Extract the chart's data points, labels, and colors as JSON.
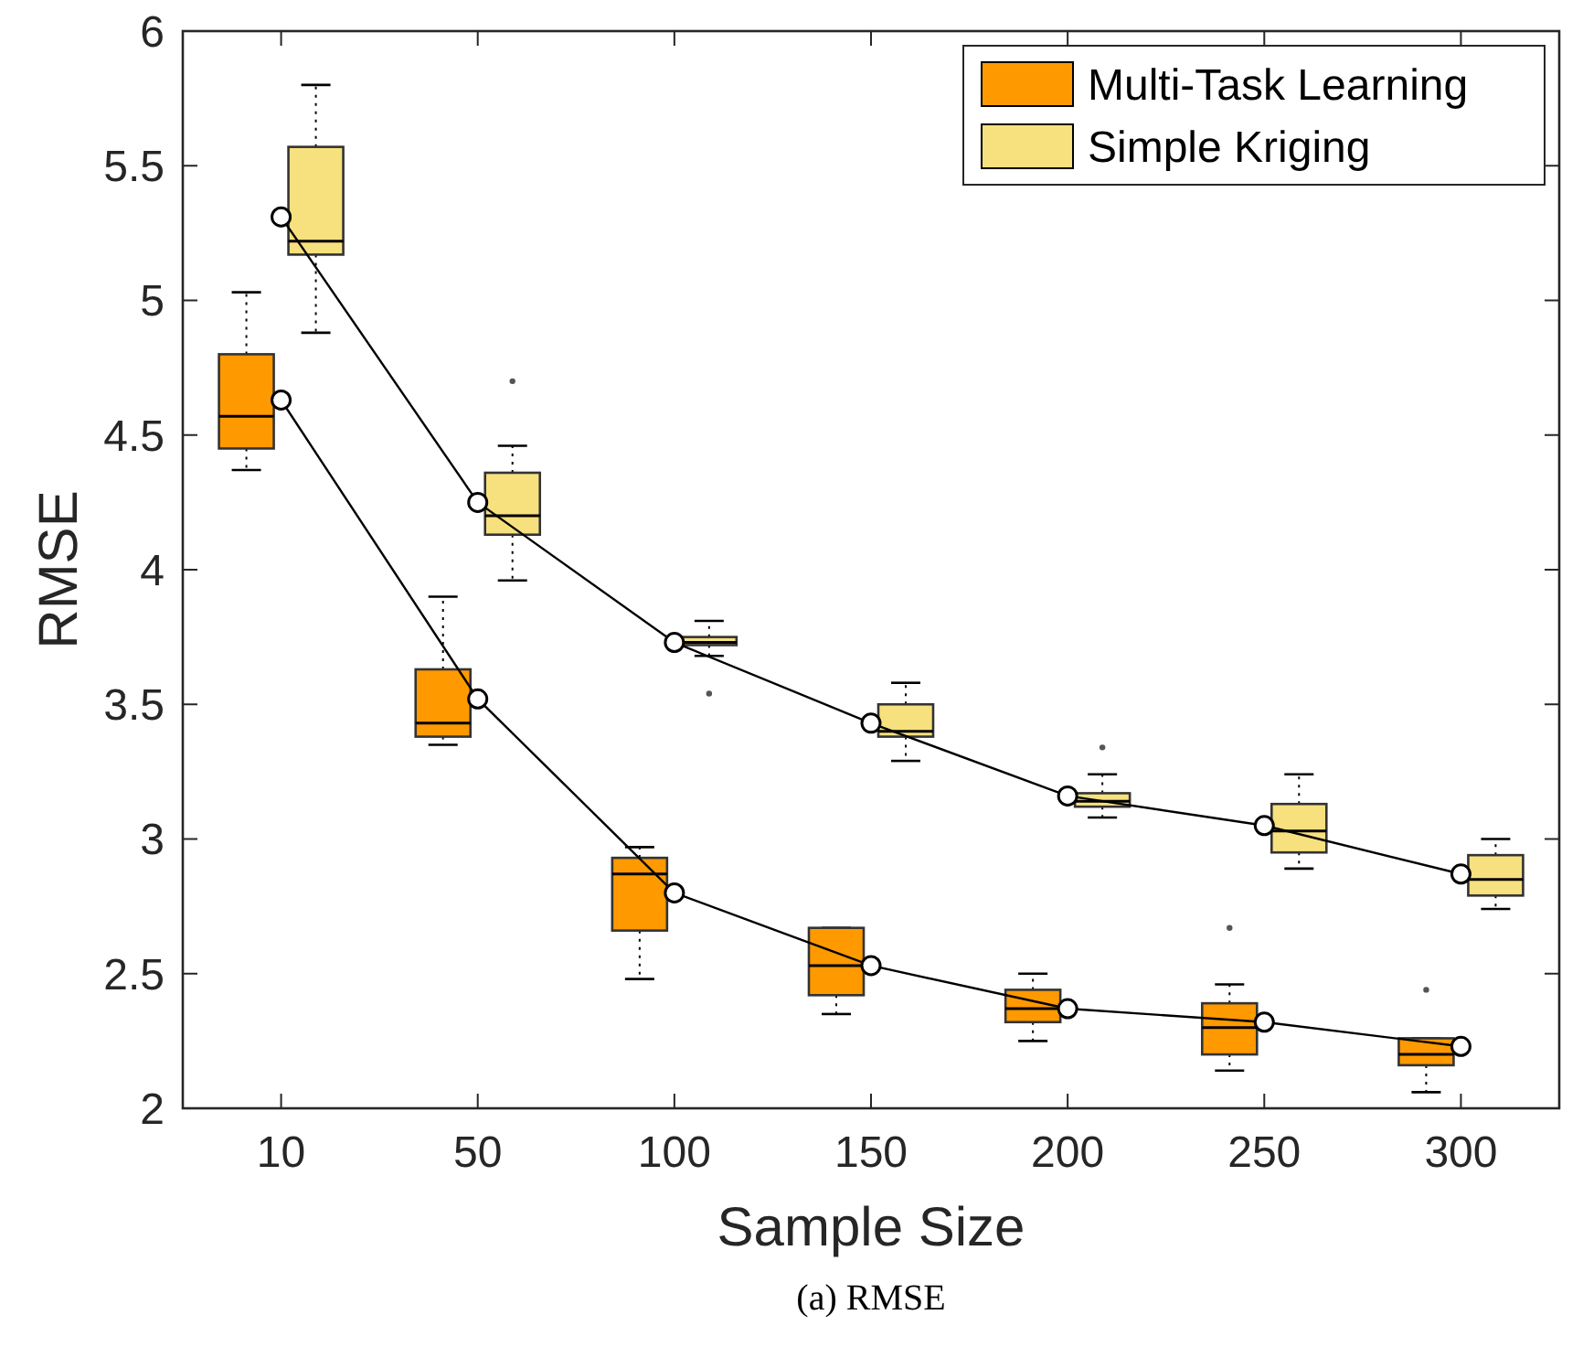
{
  "chart_data": {
    "type": "box",
    "xlabel": "Sample Size",
    "ylabel": "RMSE",
    "annotations": [
      "(a) RMSE"
    ],
    "categories": [
      "10",
      "50",
      "100",
      "150",
      "200",
      "250",
      "300"
    ],
    "ylim": [
      2,
      6
    ],
    "yticks": [
      2,
      2.5,
      3,
      3.5,
      4,
      4.5,
      5,
      5.5,
      6
    ],
    "grid": false,
    "legend": "top right",
    "series": [
      {
        "name": "Multi-Task Learning",
        "color": "#ff9900",
        "boxes": [
          {
            "low": 4.37,
            "q1": 4.45,
            "median": 4.57,
            "q3": 4.8,
            "high": 5.03
          },
          {
            "low": 3.35,
            "q1": 3.38,
            "median": 3.43,
            "q3": 3.63,
            "high": 3.9
          },
          {
            "low": 2.48,
            "q1": 2.66,
            "median": 2.87,
            "q3": 2.93,
            "high": 2.97
          },
          {
            "low": 2.35,
            "q1": 2.42,
            "median": 2.53,
            "q3": 2.67,
            "high": 2.67
          },
          {
            "low": 2.25,
            "q1": 2.32,
            "median": 2.37,
            "q3": 2.44,
            "high": 2.5
          },
          {
            "low": 2.14,
            "q1": 2.2,
            "median": 2.3,
            "q3": 2.39,
            "high": 2.46,
            "outliers": [
              2.67
            ]
          },
          {
            "low": 2.06,
            "q1": 2.16,
            "median": 2.2,
            "q3": 2.26,
            "high": 2.26,
            "outliers": [
              2.44
            ]
          }
        ]
      },
      {
        "name": "Simple Kriging",
        "color": "#f7e07e",
        "boxes": [
          {
            "low": 4.88,
            "q1": 5.17,
            "median": 5.22,
            "q3": 5.57,
            "high": 5.8
          },
          {
            "low": 3.96,
            "q1": 4.13,
            "median": 4.2,
            "q3": 4.36,
            "high": 4.46,
            "outliers": [
              4.7
            ]
          },
          {
            "low": 3.68,
            "q1": 3.72,
            "median": 3.73,
            "q3": 3.75,
            "high": 3.81,
            "outliers": [
              3.54
            ]
          },
          {
            "low": 3.29,
            "q1": 3.38,
            "median": 3.4,
            "q3": 3.5,
            "high": 3.58
          },
          {
            "low": 3.08,
            "q1": 3.12,
            "median": 3.14,
            "q3": 3.17,
            "high": 3.24,
            "outliers": [
              3.34
            ]
          },
          {
            "low": 2.89,
            "q1": 2.95,
            "median": 3.03,
            "q3": 3.13,
            "high": 3.24
          },
          {
            "low": 2.74,
            "q1": 2.79,
            "median": 2.85,
            "q3": 2.94,
            "high": 3.0
          }
        ]
      },
      {
        "type": "line",
        "color": "#000000",
        "marker": "circle",
        "values": [
          4.63,
          3.52,
          2.8,
          2.53,
          2.37,
          2.32,
          2.23
        ]
      },
      {
        "type": "line",
        "color": "#000000",
        "marker": "circle",
        "values": [
          5.31,
          4.25,
          3.73,
          3.43,
          3.16,
          3.05,
          2.87
        ]
      }
    ]
  }
}
